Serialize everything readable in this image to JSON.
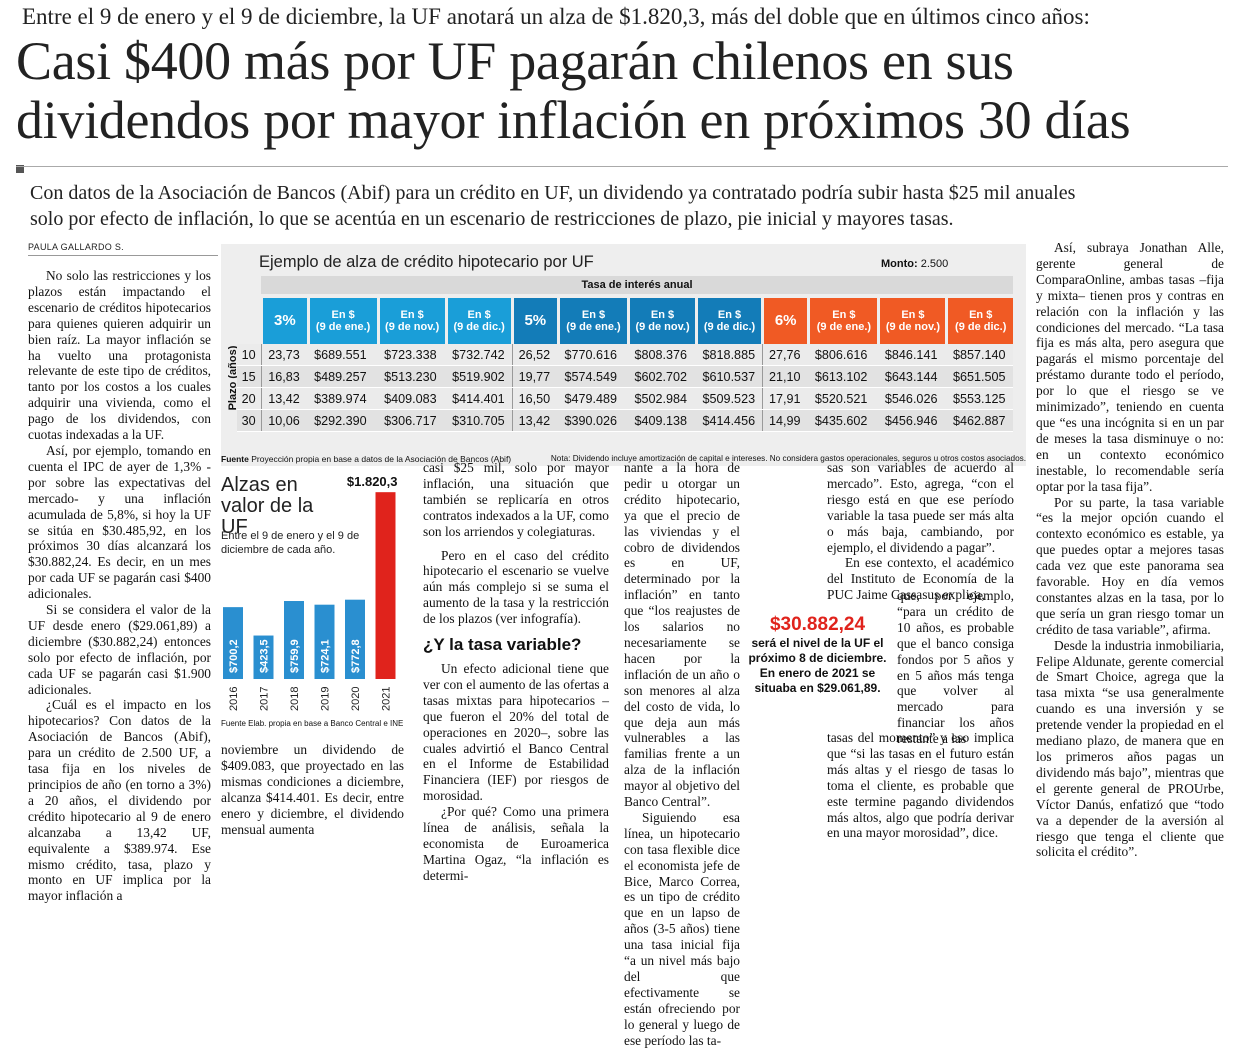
{
  "header": {
    "kicker": "Entre el 9 de enero y el 9 de diciembre, la UF anotará un alza de $1.820,3, más del doble que en últimos cinco años:",
    "headline_line1": "Casi $400 más por UF pagarán chilenos en sus",
    "headline_line2": "dividendos por mayor inflación en próximos 30 días",
    "deck_line1": "Con datos de la Asociación de Bancos (Abif) para un crédito en UF, un dividendo ya contratado podría subir hasta $25 mil anuales",
    "deck_line2": "solo por efecto de inflación, lo que se acentúa en un escenario de restricciones de plazo, pie inicial y mayores tasas.",
    "byline": "PAULA GALLARDO S."
  },
  "infographic": {
    "title": "Ejemplo de alza de crédito hipotecario por UF",
    "monto_label": "Monto:",
    "monto_value": "2.500",
    "rate_header": "Tasa de interés anual",
    "plazo_label": "Plazo (años)",
    "columns": [
      {
        "type": "rate",
        "label": "3%"
      },
      {
        "type": "val",
        "l1": "En $",
        "l2": "(9 de ene.)"
      },
      {
        "type": "val",
        "l1": "En $",
        "l2": "(9 de nov.)"
      },
      {
        "type": "val",
        "l1": "En $",
        "l2": "(9 de dic.)"
      },
      {
        "type": "rate",
        "label": "5%"
      },
      {
        "type": "val",
        "l1": "En $",
        "l2": "(9 de ene.)"
      },
      {
        "type": "val",
        "l1": "En $",
        "l2": "(9 de nov.)"
      },
      {
        "type": "val",
        "l1": "En $",
        "l2": "(9 de dic.)"
      },
      {
        "type": "rate",
        "label": "6%"
      },
      {
        "type": "val",
        "l1": "En $",
        "l2": "(9 de ene.)"
      },
      {
        "type": "val",
        "l1": "En $",
        "l2": "(9 de nov.)"
      },
      {
        "type": "val",
        "l1": "En $",
        "l2": "(9 de dic.)"
      }
    ],
    "rows": [
      {
        "plazo": "10",
        "cells": [
          "23,73",
          "$689.551",
          "$723.338",
          "$732.742",
          "26,52",
          "$770.616",
          "$808.376",
          "$818.885",
          "27,76",
          "$806.616",
          "$846.141",
          "$857.140"
        ]
      },
      {
        "plazo": "15",
        "cells": [
          "16,83",
          "$489.257",
          "$513.230",
          "$519.902",
          "19,77",
          "$574.549",
          "$602.702",
          "$610.537",
          "21,10",
          "$613.102",
          "$643.144",
          "$651.505"
        ]
      },
      {
        "plazo": "20",
        "cells": [
          "13,42",
          "$389.974",
          "$409.083",
          "$414.401",
          "16,50",
          "$479.489",
          "$502.984",
          "$509.523",
          "17,91",
          "$520.521",
          "$546.026",
          "$553.125"
        ]
      },
      {
        "plazo": "30",
        "cells": [
          "10,06",
          "$292.390",
          "$306.717",
          "$310.705",
          "13,42",
          "$390.026",
          "$409.138",
          "$414.456",
          "14,99",
          "$435.602",
          "$456.946",
          "$462.887"
        ]
      }
    ],
    "source_label": "Fuente",
    "source_text": "Proyección propia en base a datos de la Asociación de Bancos (Abif)",
    "note": "Nota: Dividendo incluye amortización de capital e intereses. No considera gastos operacionales, seguros u otros costos asociados.",
    "colors": {
      "blue_light": "#1a9ed8",
      "blue_dark": "#137cb8",
      "orange": "#f05a24",
      "panel": "#eeeeee"
    }
  },
  "chart_data": {
    "type": "bar",
    "title": "Alzas en valor de la UF",
    "subtitle": "Entre el 9 de enero y el 9 de diciembre de cada año.",
    "categories": [
      "2016",
      "2017",
      "2018",
      "2019",
      "2020",
      "2021"
    ],
    "values": [
      700.2,
      423.5,
      759.9,
      724.1,
      772.8,
      1820.3
    ],
    "labels": [
      "$700,2",
      "$423,5",
      "$759,9",
      "$724,1",
      "$772,8",
      "$1.820,3"
    ],
    "colors": [
      "#2a8fd0",
      "#2a8fd0",
      "#2a8fd0",
      "#2a8fd0",
      "#2a8fd0",
      "#e0231c"
    ],
    "ylim": [
      0,
      1900
    ],
    "grid": false,
    "source": "Fuente Elab. propia en base a Banco Central e INE"
  },
  "highlight": {
    "value": "$30.882,24",
    "text_line1": "será el nivel de la UF el",
    "text_line2": "próximo 8 de diciembre.",
    "text_line3": "En enero de 2021 se",
    "text_line4": "situaba en $29.061,89."
  },
  "body": {
    "col1": [
      "No solo las restricciones y los plazos están impactando el escenario de créditos hipotecarios para quienes quieren adquirir un bien raíz. La mayor inflación se ha vuelto una protagonista relevante de este tipo de créditos, tanto por los costos a los cuales adquirir una vivienda, como el pago de los dividendos, con cuotas indexadas a la UF.",
      "Así, por ejemplo, tomando en cuenta el IPC de ayer de 1,3% -por sobre las expectativas del mercado- y una inflación acumulada de 5,8%, si hoy la UF se sitúa en $30.485,92, en los próximos 30 días alcanzará los $30.882,24. Es decir, en un mes por cada UF se pagarán casi $400 adicionales.",
      "Si se considera el valor de la UF desde enero ($29.061,89) a diciembre ($30.882,24) entonces solo por efecto de inflación, por cada UF se pagarán casi $1.900 adicionales.",
      "¿Cuál es el impacto en los hipotecarios? Con datos de la Asociación de Bancos (Abif), para un crédito de 2.500 UF, a tasa fija en los niveles de principios de año (en torno a 3%) a 20 años, el dividendo por crédito hipotecario al 9 de enero alcanzaba a 13,42 UF, equivalente a $389.974. Ese mismo crédito, tasa, plazo y monto en UF implica por la mayor inflación a"
    ],
    "col2_bottom": "noviembre un dividendo de $409.083, que proyectado en las mismas condiciones a diciembre, alcanza $414.401. Es decir, entre enero y diciembre, el dividendo mensual aumenta",
    "col3": [
      "casi $25 mil, solo por mayor inflación, una situación que también se replicaría en otros contratos indexados a la UF, como son los arriendos y colegiaturas.",
      "Pero en el caso del crédito hipotecario el escenario se vuelve aún más complejo si se suma el aumento de la tasa y la restricción de los plazos (ver infografía)."
    ],
    "col3_subhead": "¿Y la tasa variable?",
    "col3b": [
      "Un efecto adicional tiene que ver con el aumento de las ofertas a tasas mixtas para hipotecarios –que fueron el 20% del total de operaciones en 2020–, sobre las cuales advirtió el Banco Central en el Informe de Estabilidad Financiera (IEF) por riesgos de morosidad.",
      "¿Por qué? Como una primera línea de análisis, señala la economista de Euroamerica Martina Ogaz, “la inflación es determi-"
    ],
    "col4_top": "nante a la hora de pedir u otorgar un crédito hipotecario, ya que el precio de las viviendas y el cobro de dividendos es en UF, determinado por la inflación” en tanto que “los reajustes de los salarios no necesariamente se hacen por la inflación de un año o son menores al alza del costo de vida, lo que deja aun más vulnerables a las familias frente a un alza de la inflación mayor al objetivo del Banco Central”.",
    "col4_bottom": "Siguiendo esa línea, un hipotecario con tasa flexible dice el economista jefe de Bice, Marco Correa, es un tipo de crédito que en un lapso de años (3-5 años) tiene una tasa inicial fija “a un nivel más bajo del que efectivamente se están ofreciendo por lo general y luego de ese período las ta-",
    "col5_top": [
      "sas son variables de acuerdo al mercado”. Esto, agrega, “con el riesgo está en que ese período variable la tasa puede ser más alta o más baja, cambiando, por ejemplo, el dividendo a pagar”.",
      "En ese contexto, el académico del Instituto de Economía de la PUC Jaime Cassasus explica,"
    ],
    "col5_mid": "que, por ejemplo, “para un crédito de 10 años, es probable que el banco consiga fondos por 5 años y en 5 años más tenga que volver al mercado para financiar los años restante a las",
    "col5_bottom": "tasas del momento” y eso implica que “si las tasas en el futuro están más altas y el riesgo de tasas lo toma el cliente, es probable que este termine pagando dividendos más altos, algo que podría derivar en una mayor morosidad”, dice.",
    "col6": [
      "Así, subraya Jonathan Alle, gerente general de ComparaOnline, ambas tasas –fija y mixta– tienen pros y contras en relación con la inflación y las condiciones del mercado. “La tasa fija es más alta, pero asegura que pagarás el mismo porcentaje del préstamo durante todo el período, por lo que el riesgo se ve minimizado”, teniendo en cuenta que “es una incógnita si en un par de meses la tasa disminuye o no: en un contexto económico inestable, lo recomendable sería optar por la tasa fija”.",
      "Por su parte, la tasa variable “es la mejor opción cuando el contexto económico es estable, ya que puedes optar a mejores tasas cada vez que este panorama sea favorable. Hoy en día vemos constantes alzas en la tasa, por lo que sería un gran riesgo tomar un crédito de tasa variable”, afirma.",
      "Desde la industria inmobiliaria, Felipe Aldunate, gerente comercial de Smart Choice, agrega que la tasa mixta “se usa generalmente cuando es una inversión y se pretende vender la propiedad en el mediano plazo, de manera que en los primeros años pagas un dividendo más bajo”, mientras que el gerente general de PROUrbe, Víctor Danús, enfatizó que “todo va a depender de la aversión al riesgo que tenga el cliente que solicita el crédito”."
    ]
  }
}
